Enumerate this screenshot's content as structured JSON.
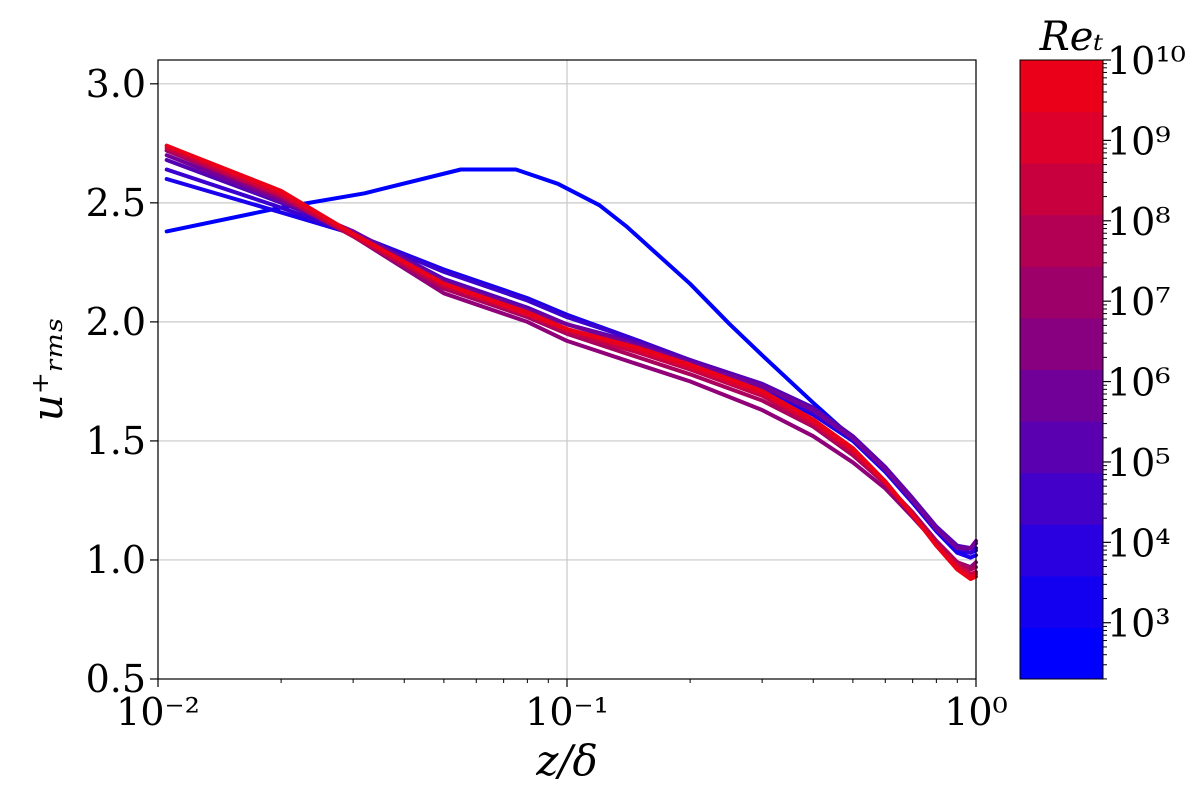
{
  "chart_data": {
    "type": "line",
    "xlabel": "z/δ",
    "ylabel": "u⁺ᵣₘₛ",
    "xscale": "log",
    "xlim": [
      0.01,
      1
    ],
    "ylim": [
      0.5,
      3.1
    ],
    "grid": true,
    "x_ticks": [
      {
        "value": 0.01,
        "label": "10⁻²"
      },
      {
        "value": 0.1,
        "label": "10⁻¹"
      },
      {
        "value": 1,
        "label": "10⁰"
      }
    ],
    "y_ticks": [
      {
        "value": 0.5,
        "label": "0.5"
      },
      {
        "value": 1.0,
        "label": "1.0"
      },
      {
        "value": 1.5,
        "label": "1.5"
      },
      {
        "value": 2.0,
        "label": "2.0"
      },
      {
        "value": 2.5,
        "label": "2.5"
      },
      {
        "value": 3.0,
        "label": "3.0"
      }
    ],
    "colorbar": {
      "title": "Reₜ",
      "scale": "log",
      "range_exponent": [
        2.3,
        10
      ],
      "ticks": [
        {
          "exp": 3,
          "label": "10³"
        },
        {
          "exp": 4,
          "label": "10⁴"
        },
        {
          "exp": 5,
          "label": "10⁵"
        },
        {
          "exp": 6,
          "label": "10⁶"
        },
        {
          "exp": 7,
          "label": "10⁷"
        },
        {
          "exp": 8,
          "label": "10⁸"
        },
        {
          "exp": 9,
          "label": "10⁹"
        },
        {
          "exp": 10,
          "label": "10¹⁰"
        }
      ],
      "bands": [
        "#0000ff",
        "#1400f0",
        "#2a00e0",
        "#4200c8",
        "#5a00b0",
        "#700098",
        "#880080",
        "#9e006a",
        "#b40054",
        "#c8003e",
        "#dc002a",
        "#ea0018"
      ]
    },
    "series": [
      {
        "color": "#0000ff",
        "x": [
          0.0105,
          0.02,
          0.032,
          0.055,
          0.075,
          0.095,
          0.12,
          0.14,
          0.16,
          0.2,
          0.25,
          0.3,
          0.4,
          0.5,
          0.6,
          0.7,
          0.8,
          0.9,
          0.97,
          1.0
        ],
        "y": [
          2.38,
          2.48,
          2.54,
          2.64,
          2.64,
          2.58,
          2.49,
          2.4,
          2.31,
          2.16,
          1.99,
          1.86,
          1.66,
          1.51,
          1.38,
          1.25,
          1.13,
          1.04,
          1.03,
          1.04
        ]
      },
      {
        "color": "#1a00ec",
        "x": [
          0.0105,
          0.02,
          0.03,
          0.05,
          0.08,
          0.1,
          0.15,
          0.2,
          0.3,
          0.4,
          0.5,
          0.6,
          0.7,
          0.8,
          0.9,
          0.97,
          1.0
        ],
        "y": [
          2.6,
          2.46,
          2.37,
          2.22,
          2.1,
          2.03,
          1.92,
          1.83,
          1.72,
          1.61,
          1.5,
          1.37,
          1.24,
          1.12,
          1.03,
          1.01,
          1.02
        ]
      },
      {
        "color": "#3a00d0",
        "x": [
          0.0105,
          0.02,
          0.03,
          0.05,
          0.08,
          0.1,
          0.15,
          0.2,
          0.3,
          0.4,
          0.5,
          0.6,
          0.7,
          0.8,
          0.9,
          0.97,
          1.0
        ],
        "y": [
          2.64,
          2.48,
          2.37,
          2.21,
          2.09,
          2.02,
          1.92,
          1.84,
          1.73,
          1.62,
          1.51,
          1.38,
          1.25,
          1.13,
          1.05,
          1.03,
          1.05
        ]
      },
      {
        "color": "#5600b4",
        "x": [
          0.0105,
          0.02,
          0.03,
          0.05,
          0.08,
          0.1,
          0.15,
          0.2,
          0.3,
          0.4,
          0.5,
          0.6,
          0.7,
          0.8,
          0.9,
          0.97,
          1.0
        ],
        "y": [
          2.68,
          2.5,
          2.38,
          2.18,
          2.06,
          1.99,
          1.91,
          1.84,
          1.74,
          1.64,
          1.52,
          1.39,
          1.26,
          1.14,
          1.06,
          1.05,
          1.07
        ]
      },
      {
        "color": "#74009a",
        "x": [
          0.0105,
          0.02,
          0.03,
          0.05,
          0.08,
          0.1,
          0.15,
          0.2,
          0.3,
          0.4,
          0.5,
          0.6,
          0.7,
          0.8,
          0.9,
          0.97,
          1.0
        ],
        "y": [
          2.7,
          2.51,
          2.38,
          2.17,
          2.05,
          1.99,
          1.9,
          1.83,
          1.73,
          1.63,
          1.51,
          1.38,
          1.25,
          1.13,
          1.05,
          1.05,
          1.08
        ]
      },
      {
        "color": "#900078",
        "x": [
          0.0105,
          0.02,
          0.03,
          0.05,
          0.08,
          0.1,
          0.15,
          0.2,
          0.3,
          0.4,
          0.5,
          0.6,
          0.7,
          0.8,
          0.9,
          0.97,
          1.0
        ],
        "y": [
          2.72,
          2.52,
          2.36,
          2.12,
          2.0,
          1.92,
          1.82,
          1.75,
          1.63,
          1.52,
          1.41,
          1.3,
          1.18,
          1.07,
          0.99,
          0.97,
          0.99
        ]
      },
      {
        "color": "#aa005e",
        "x": [
          0.0105,
          0.02,
          0.03,
          0.05,
          0.08,
          0.1,
          0.15,
          0.2,
          0.3,
          0.4,
          0.5,
          0.6,
          0.7,
          0.8,
          0.9,
          0.97,
          1.0
        ],
        "y": [
          2.72,
          2.53,
          2.36,
          2.14,
          2.02,
          1.95,
          1.85,
          1.78,
          1.67,
          1.56,
          1.44,
          1.32,
          1.2,
          1.08,
          0.99,
          0.96,
          0.97
        ]
      },
      {
        "color": "#c40046",
        "x": [
          0.0105,
          0.02,
          0.03,
          0.05,
          0.08,
          0.1,
          0.15,
          0.2,
          0.3,
          0.4,
          0.5,
          0.6,
          0.7,
          0.8,
          0.9,
          0.97,
          1.0
        ],
        "y": [
          2.73,
          2.53,
          2.36,
          2.15,
          2.03,
          1.96,
          1.87,
          1.8,
          1.69,
          1.57,
          1.45,
          1.32,
          1.19,
          1.07,
          0.98,
          0.94,
          0.95
        ]
      },
      {
        "color": "#dc0030",
        "x": [
          0.0105,
          0.02,
          0.03,
          0.05,
          0.08,
          0.1,
          0.15,
          0.2,
          0.3,
          0.4,
          0.5,
          0.6,
          0.7,
          0.8,
          0.9,
          0.97,
          1.0
        ],
        "y": [
          2.74,
          2.54,
          2.37,
          2.16,
          2.03,
          1.97,
          1.88,
          1.81,
          1.7,
          1.58,
          1.46,
          1.33,
          1.19,
          1.06,
          0.97,
          0.93,
          0.94
        ]
      },
      {
        "color": "#ec0018",
        "x": [
          0.0105,
          0.02,
          0.03,
          0.05,
          0.08,
          0.1,
          0.15,
          0.2,
          0.3,
          0.4,
          0.5,
          0.6,
          0.7,
          0.8,
          0.9,
          0.97,
          1.0
        ],
        "y": [
          2.74,
          2.55,
          2.37,
          2.16,
          2.04,
          1.97,
          1.89,
          1.82,
          1.71,
          1.59,
          1.47,
          1.33,
          1.19,
          1.06,
          0.96,
          0.92,
          0.93
        ]
      }
    ]
  }
}
